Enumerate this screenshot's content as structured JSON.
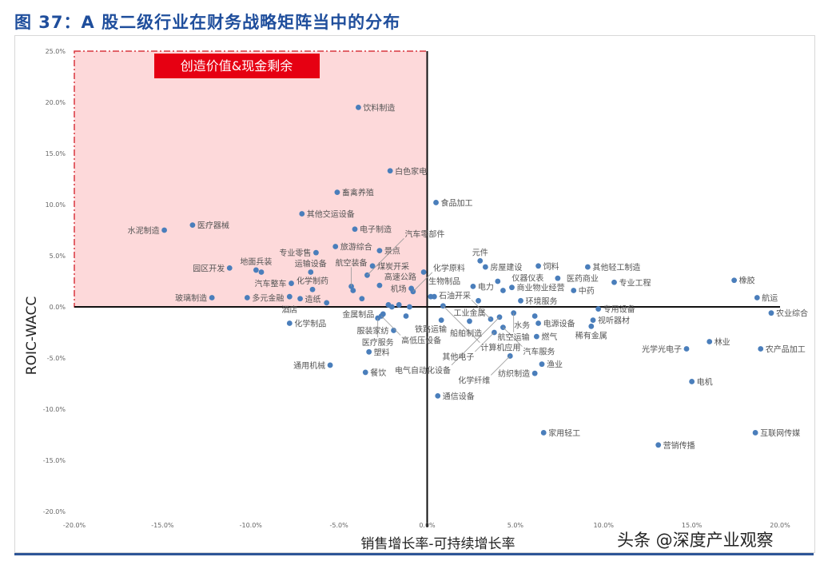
{
  "title": "图 37：A 股二级行业在财务战略矩阵当中的分布",
  "watermark": "头条 @深度产业观察",
  "chart_data": {
    "type": "scatter",
    "xlabel": "销售增长率-可持续增长率",
    "ylabel": "ROIC-WACC",
    "xlim": [
      -20,
      20
    ],
    "ylim": [
      -20,
      25
    ],
    "x_ticks": [
      "-20.0%",
      "-15.0%",
      "-10.0%",
      "-5.0%",
      "0.0%",
      "5.0%",
      "10.0%",
      "15.0%",
      "20.0%"
    ],
    "y_ticks": [
      "25.0%",
      "20.0%",
      "15.0%",
      "10.0%",
      "5.0%",
      "0.0%",
      "-5.0%",
      "-10.0%",
      "-15.0%",
      "-20.0%"
    ],
    "grid": false,
    "point_color": "#4a7ebb",
    "highlight_region": {
      "label": "创造价值&现金剩余",
      "x": [
        -20,
        0
      ],
      "y": [
        0,
        25
      ],
      "fill": "#fdd9da",
      "border": "#d9363e",
      "label_bg": "#e60012"
    },
    "points": [
      {
        "name": "饮料制造",
        "x": -3.9,
        "y": 19.5
      },
      {
        "name": "白色家电",
        "x": -2.1,
        "y": 13.3
      },
      {
        "name": "化学制药",
        "x": -6.5,
        "y": 1.7
      },
      {
        "name": "其他交运设备",
        "x": -7.1,
        "y": 9.1
      },
      {
        "name": "畜禽养殖",
        "x": -5.1,
        "y": 11.2
      },
      {
        "name": "医疗器械",
        "x": -13.3,
        "y": 8.0
      },
      {
        "name": "水泥制造",
        "x": -14.9,
        "y": 7.5
      },
      {
        "name": "运输设备",
        "x": -6.6,
        "y": 3.4
      },
      {
        "name": "电子制造",
        "x": -4.1,
        "y": 7.6
      },
      {
        "name": "景点",
        "x": -2.7,
        "y": 5.5
      },
      {
        "name": "旅游综合",
        "x": -5.2,
        "y": 5.9
      },
      {
        "name": "专业零售",
        "x": -6.3,
        "y": 5.3
      },
      {
        "name": "汽车整车",
        "x": -7.7,
        "y": 2.3
      },
      {
        "name": "园区开发",
        "x": -11.2,
        "y": 3.8
      },
      {
        "name": "地面兵装",
        "x": -9.7,
        "y": 3.6
      },
      {
        "name": "",
        "x": -9.4,
        "y": 3.4
      },
      {
        "name": "煤炭开采",
        "x": -3.1,
        "y": 4.0
      },
      {
        "name": "汽车零部件",
        "x": -3.4,
        "y": 3.1
      },
      {
        "name": "高速公路",
        "x": -2.7,
        "y": 2.1
      },
      {
        "name": "航空装备",
        "x": -4.3,
        "y": 2.0
      },
      {
        "name": "",
        "x": -4.2,
        "y": 1.6
      },
      {
        "name": "多元金融",
        "x": -10.2,
        "y": 0.9
      },
      {
        "name": "玻璃制造",
        "x": -12.2,
        "y": 0.9
      },
      {
        "name": "酒店",
        "x": -7.8,
        "y": 1.0
      },
      {
        "name": "造纸",
        "x": -7.2,
        "y": 0.8
      },
      {
        "name": "",
        "x": -5.7,
        "y": 0.4
      },
      {
        "name": "",
        "x": -3.7,
        "y": 0.8
      },
      {
        "name": "机场",
        "x": -0.9,
        "y": 1.8
      },
      {
        "name": "化学原料",
        "x": -0.8,
        "y": 1.5
      },
      {
        "name": "生物制品",
        "x": -0.2,
        "y": 3.4
      },
      {
        "name": "化学制品",
        "x": -7.8,
        "y": -1.6
      },
      {
        "name": "金属制品",
        "x": -2.5,
        "y": -0.7
      },
      {
        "name": "铁路运输",
        "x": -1.2,
        "y": -0.9
      },
      {
        "name": "",
        "x": -2.2,
        "y": 0.2
      },
      {
        "name": "",
        "x": -2.0,
        "y": 0.0
      },
      {
        "name": "",
        "x": -1.6,
        "y": 0.2
      },
      {
        "name": "",
        "x": -1.0,
        "y": 0.0
      },
      {
        "name": "塑料",
        "x": -3.3,
        "y": -4.4
      },
      {
        "name": "服装家纺",
        "x": -1.9,
        "y": -2.3
      },
      {
        "name": "餐饮",
        "x": -3.5,
        "y": -6.4
      },
      {
        "name": "通用机械",
        "x": -5.5,
        "y": -5.7
      },
      {
        "name": "医疗服务",
        "x": -2.8,
        "y": -1.1
      },
      {
        "name": "高低压设备",
        "x": -2.6,
        "y": -0.9
      },
      {
        "name": "食品加工",
        "x": 0.5,
        "y": 10.2
      },
      {
        "name": "计算机应用",
        "x": 0.9,
        "y": 0.1
      },
      {
        "name": "",
        "x": 0.4,
        "y": 1.0
      },
      {
        "name": "",
        "x": 0.2,
        "y": 1.0
      },
      {
        "name": "元件",
        "x": 3.0,
        "y": 4.5
      },
      {
        "name": "房屋建设",
        "x": 3.3,
        "y": 3.9
      },
      {
        "name": "商业物业经营",
        "x": 4.8,
        "y": 1.9
      },
      {
        "name": "饲料",
        "x": 6.3,
        "y": 4.0
      },
      {
        "name": "医药商业",
        "x": 7.4,
        "y": 2.8
      },
      {
        "name": "其他轻工制造",
        "x": 9.1,
        "y": 3.9
      },
      {
        "name": "专业工程",
        "x": 10.6,
        "y": 2.4
      },
      {
        "name": "中药",
        "x": 8.3,
        "y": 1.6
      },
      {
        "name": "仪器仪表",
        "x": 4.3,
        "y": 1.6
      },
      {
        "name": "电力",
        "x": 2.6,
        "y": 2.0
      },
      {
        "name": "",
        "x": 2.9,
        "y": 0.6
      },
      {
        "name": "环境服务",
        "x": 5.3,
        "y": 0.6
      },
      {
        "name": "",
        "x": 4.0,
        "y": 2.5
      },
      {
        "name": "专用设备",
        "x": 9.7,
        "y": -0.2
      },
      {
        "name": "水务",
        "x": 6.1,
        "y": -0.9
      },
      {
        "name": "电源设备",
        "x": 6.3,
        "y": -1.6
      },
      {
        "name": "视听器材",
        "x": 9.4,
        "y": -1.3
      },
      {
        "name": "稀有金属",
        "x": 9.3,
        "y": -1.9
      },
      {
        "name": "燃气",
        "x": 6.2,
        "y": -2.9
      },
      {
        "name": "渔业",
        "x": 6.5,
        "y": -5.6
      },
      {
        "name": "纺织制造",
        "x": 6.1,
        "y": -6.5
      },
      {
        "name": "船舶制造",
        "x": 0.8,
        "y": -1.3
      },
      {
        "name": "工业金属",
        "x": 2.4,
        "y": -1.4
      },
      {
        "name": "其他电子",
        "x": 3.8,
        "y": -2.5
      },
      {
        "name": "汽车服务",
        "x": 4.3,
        "y": -2.0
      },
      {
        "name": "化学纤维",
        "x": 4.7,
        "y": -4.8
      },
      {
        "name": "通信设备",
        "x": 0.6,
        "y": -8.7
      },
      {
        "name": "石油开采",
        "x": 3.6,
        "y": -1.2
      },
      {
        "name": "电气自动化设备",
        "x": 4.1,
        "y": -1.0
      },
      {
        "name": "家用轻工",
        "x": 6.6,
        "y": -12.3
      },
      {
        "name": "航空运输",
        "x": 4.9,
        "y": -0.6
      },
      {
        "name": "橡胶",
        "x": 17.4,
        "y": 2.6
      },
      {
        "name": "航运",
        "x": 18.7,
        "y": 0.9
      },
      {
        "name": "农业综合",
        "x": 19.5,
        "y": -0.6
      },
      {
        "name": "光学光电子",
        "x": 14.7,
        "y": -4.1
      },
      {
        "name": "林业",
        "x": 16.0,
        "y": -3.4
      },
      {
        "name": "农产品加工",
        "x": 18.9,
        "y": -4.1
      },
      {
        "name": "电机",
        "x": 15.0,
        "y": -7.3
      },
      {
        "name": "互联网传媒",
        "x": 18.6,
        "y": -12.3
      },
      {
        "name": "营销传播",
        "x": 13.1,
        "y": -13.5
      }
    ]
  }
}
